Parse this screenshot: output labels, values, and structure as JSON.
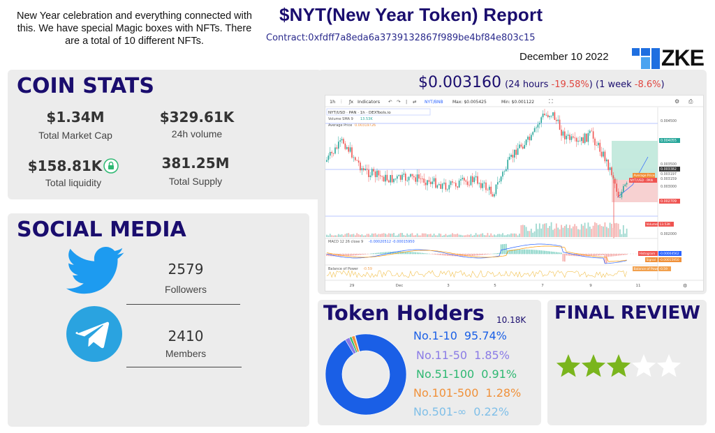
{
  "header": {
    "intro": "New Year celebration and everything connected with this. We have special Magic boxes with NFTs. There are a total of 10 different NFTs.",
    "title": "$NYT(New Year Token)  Report",
    "contract": "Contract:0xfdff7a8eda6a3739132867f989be4bf84e803c15",
    "date": "December 10 2022",
    "brand_text": "ZKE"
  },
  "coin_stats": {
    "title": "COIN STATS",
    "market_cap": {
      "value": "$1.34M",
      "label": "Total Market Cap"
    },
    "volume": {
      "value": "$329.61K",
      "label": "24h volume"
    },
    "liquidity": {
      "value": "$158.81K",
      "label": "Total liquidity"
    },
    "supply": {
      "value": "381.25M",
      "label": "Total Supply"
    }
  },
  "social": {
    "title": "SOCIAL MEDIA",
    "twitter": {
      "count": "2579",
      "label": "Followers"
    },
    "telegram": {
      "count": "2410",
      "label": "Members"
    }
  },
  "price": {
    "value": "$0.003160",
    "change_24h_prefix": "(24 hours",
    "change_24h": "-19.58%",
    "change_24h_suffix": ")",
    "change_1w_prefix": "(1 week",
    "change_1w": "-8.6%",
    "change_1w_suffix": ")"
  },
  "chart": {
    "toolbar": {
      "interval": "1h",
      "indicators": "Indicators",
      "pair": "NYT/BNB",
      "max": "Max: $0.005425",
      "min": "Min: $0.001122"
    },
    "legend": {
      "pair": "NYT/USD · PAN · 1h · DEXTools.io",
      "volume_sma": "Volume SMA 9",
      "volume_sma_value": "13.53K",
      "average_price": "Average Price",
      "average_price_value": "0.00319726",
      "macd": "MACD 12 26 close 9",
      "macd_values": "-0.00020512   -0.00015950",
      "bop": "Balance of Power",
      "bop_value": "-0.59"
    },
    "price_axis": [
      "0.004500",
      "0.004055",
      "0.003500",
      "0.003382",
      "0.003197",
      "0.003159",
      "0.003000",
      "0.002709",
      "0.002000"
    ],
    "right_tags": [
      "Average Price",
      "NYT/USD · PAN",
      "Volume",
      "13.53K",
      "Histogram",
      "-0.00004562",
      "Signal",
      "-0.00015950",
      "Balance of Power",
      "-0.59"
    ],
    "time_axis": [
      "29",
      "Dec",
      "3",
      "5",
      "7",
      "9",
      "11"
    ],
    "colors": {
      "up": "#26a69a",
      "down": "#ef5350",
      "macd": "#2962ff",
      "signal": "#ff9800",
      "bop": "#f2c14e"
    }
  },
  "holders": {
    "title": "Token Holders",
    "count": "10.18K",
    "rows": [
      {
        "label": "No.1-10",
        "value": "95.74%",
        "pct": 95.74,
        "color": "#1a5fe6"
      },
      {
        "label": "No.11-50",
        "value": "1.85%",
        "pct": 1.85,
        "color": "#8a7be6"
      },
      {
        "label": "No.51-100",
        "value": "0.91%",
        "pct": 0.91,
        "color": "#2eb872"
      },
      {
        "label": "No.101-500",
        "value": "1.28%",
        "pct": 1.28,
        "color": "#f0913a"
      },
      {
        "label": "No.501-∞",
        "value": "0.22%",
        "pct": 0.22,
        "color": "#7fbfe8"
      }
    ]
  },
  "review": {
    "title": "FINAL REVIEW",
    "rating": 3,
    "max": 5,
    "star_color": "#7ab51d",
    "empty_star_color": "#ffffff"
  }
}
